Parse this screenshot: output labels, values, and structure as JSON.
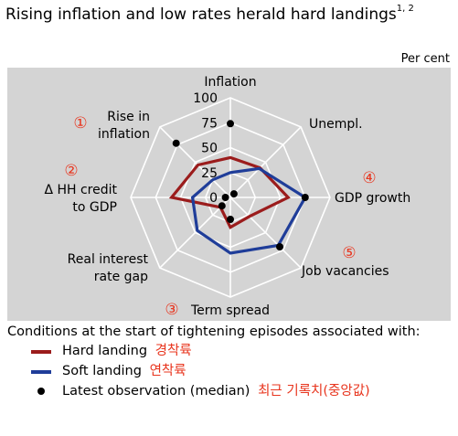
{
  "title": {
    "text": "Rising inflation and low rates herald hard landings",
    "superscript": "1, 2"
  },
  "unit_label": "Per cent",
  "chart_data": {
    "type": "radar",
    "axes": [
      {
        "label": "Inflation",
        "marker": ""
      },
      {
        "label": "Unempl.",
        "marker": ""
      },
      {
        "label": "GDP growth",
        "marker": "④"
      },
      {
        "label": "Job vacancies",
        "marker": "⑤"
      },
      {
        "label": "Term spread",
        "marker": "③"
      },
      {
        "label": "Real interest rate gap",
        "marker": ""
      },
      {
        "label": "Δ HH credit to GDP",
        "marker": "②"
      },
      {
        "label": "Rise in inflation",
        "marker": "①"
      }
    ],
    "range": [
      0,
      100
    ],
    "ticks": [
      "0",
      "25",
      "50",
      "75",
      "100"
    ],
    "series": [
      {
        "name": "Hard landing",
        "color": "#9b1c1c",
        "values": [
          40,
          42,
          58,
          27,
          30,
          14,
          59,
          46
        ]
      },
      {
        "name": "Soft landing",
        "color": "#1f3d99",
        "values": [
          25,
          41,
          75,
          68,
          56,
          47,
          38,
          25
        ]
      },
      {
        "name": "Latest observation (median)",
        "color": "#000000",
        "values": [
          74,
          5,
          75,
          70,
          22,
          12,
          5,
          77
        ]
      }
    ]
  },
  "legend": {
    "heading": "Conditions at the start of tightening episodes associated with:",
    "items": [
      {
        "label": "Hard landing",
        "note": "경착륙",
        "color": "#9b1c1c",
        "kind": "line"
      },
      {
        "label": "Soft landing",
        "note": "연착륙",
        "color": "#1f3d99",
        "kind": "line"
      },
      {
        "label": "Latest observation (median)",
        "note": "최근 기록치(중앙값)",
        "color": "#000000",
        "kind": "dot"
      }
    ]
  }
}
